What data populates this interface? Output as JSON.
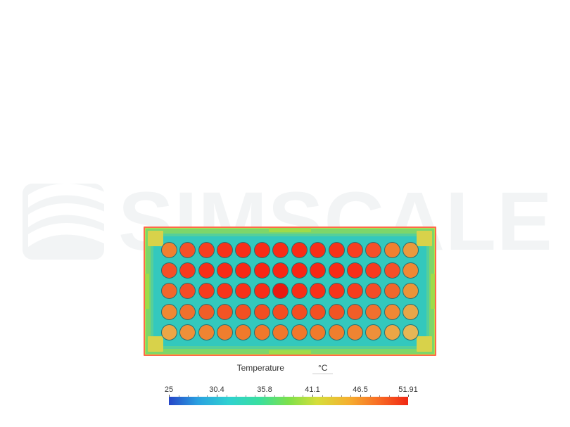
{
  "watermark": {
    "text": "SIMSCALE",
    "color": "#f2f4f5"
  },
  "heatmap": {
    "type": "heatmap",
    "rows": 5,
    "cols": 14,
    "border_color": "#ff6a48",
    "outer_color": "#b3e24c",
    "rim_color": "#7dd66a",
    "inner_color": "#55cf9a",
    "inner2_color": "#33c8bd",
    "cell_border_color": "#2a6f6f",
    "tab_color": "#9fdb4a",
    "corner_color": "#d8d24a",
    "cell_colors": [
      [
        "#f08030",
        "#f55028",
        "#f73e20",
        "#f8321a",
        "#f82e18",
        "#f82c17",
        "#f82c17",
        "#f82c17",
        "#f82e18",
        "#f8321a",
        "#f73e20",
        "#f55028",
        "#f08030",
        "#ea9a3e"
      ],
      [
        "#f55028",
        "#f73a1e",
        "#f82e18",
        "#f82a16",
        "#f82814",
        "#f82614",
        "#f82614",
        "#f82614",
        "#f82814",
        "#f82a16",
        "#f82e18",
        "#f73a1e",
        "#f55028",
        "#ef8834"
      ],
      [
        "#f0672c",
        "#f44c26",
        "#f63c1e",
        "#f7341a",
        "#f83018",
        "#f72e17",
        "#e81a10",
        "#f72e17",
        "#f83018",
        "#f7341a",
        "#f63c1e",
        "#f44c26",
        "#f0672c",
        "#ea9438"
      ],
      [
        "#ef8834",
        "#f0702e",
        "#f15e28",
        "#f25424",
        "#f35022",
        "#f34e21",
        "#f34e21",
        "#f34e21",
        "#f35022",
        "#f25424",
        "#f15e28",
        "#f0702e",
        "#ef8834",
        "#e8a648"
      ],
      [
        "#eca646",
        "#ee903a",
        "#ef8432",
        "#ef7e2e",
        "#f07a2c",
        "#f0782b",
        "#f0782b",
        "#f0782b",
        "#f07a2c",
        "#ef7e2e",
        "#ef8432",
        "#ee903a",
        "#eca646",
        "#e6b656"
      ]
    ]
  },
  "legend": {
    "title": "Temperature",
    "unit": "°C",
    "min": 25,
    "max": 51.91,
    "tick_labels": [
      "25",
      "30.4",
      "35.8",
      "41.1",
      "46.5",
      "51.91"
    ],
    "tick_positions_pct": [
      0,
      20,
      40,
      60,
      80,
      100
    ],
    "minor_ticks_between": 4,
    "gradient_stops": [
      {
        "pct": 0,
        "color": "#2646c8"
      },
      {
        "pct": 12,
        "color": "#2aa0e0"
      },
      {
        "pct": 25,
        "color": "#2fd1d1"
      },
      {
        "pct": 38,
        "color": "#3adf9e"
      },
      {
        "pct": 50,
        "color": "#7de04a"
      },
      {
        "pct": 62,
        "color": "#d6de3a"
      },
      {
        "pct": 75,
        "color": "#f5b030"
      },
      {
        "pct": 88,
        "color": "#f86a24"
      },
      {
        "pct": 100,
        "color": "#f02814"
      }
    ],
    "label_fontsize": 12,
    "tick_fontsize": 11,
    "text_color": "#333333"
  }
}
